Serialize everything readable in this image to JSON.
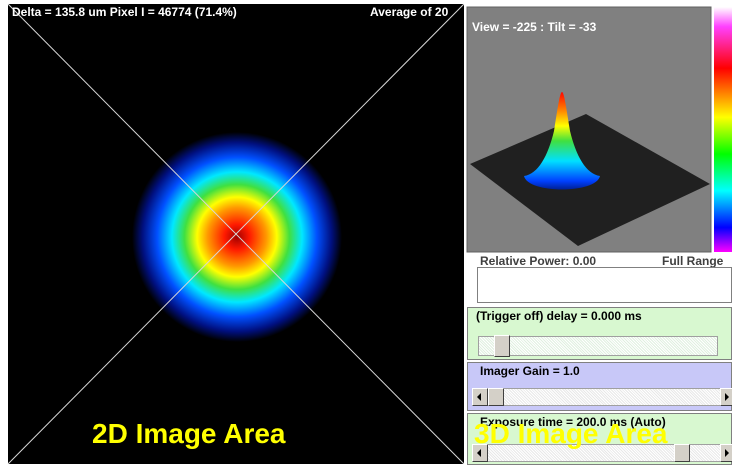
{
  "image_2d": {
    "info": "Delta = 135.8 um Pixel I = 46774 (71.4%)",
    "average": "Average of 20",
    "label": "2D Image Area"
  },
  "view_3d": {
    "view": "View = -225 : Tilt = -33",
    "label": "3D Image Area"
  },
  "status": {
    "relative_power": "Relative Power: 0.00",
    "range": "Full Range"
  },
  "controls": [
    {
      "label": "(Trigger off) delay = 0.000 ms"
    },
    {
      "label": "Imager Gain = 1.0"
    },
    {
      "label": "Exposure time = 200.0 ms (Auto)"
    }
  ]
}
